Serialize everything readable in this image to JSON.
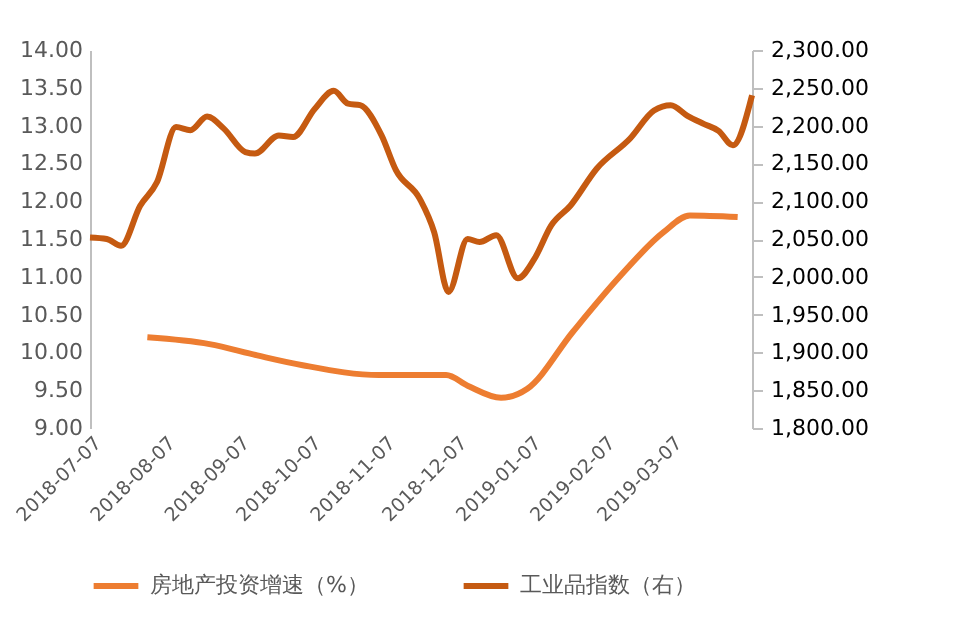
{
  "chart_data": {
    "type": "line",
    "xlim": [
      "2018-07-07",
      "2019-04-10"
    ],
    "xticks": [
      "2018-07-07",
      "2018-08-07",
      "2018-09-07",
      "2018-10-07",
      "2018-11-07",
      "2018-12-07",
      "2019-01-07",
      "2019-02-07",
      "2019-03-07"
    ],
    "ylim": [
      9,
      14
    ],
    "yticks": [
      {
        "value": 9,
        "label": "9.00"
      },
      {
        "value": 9.5,
        "label": "9.50"
      },
      {
        "value": 10,
        "label": "10.00"
      },
      {
        "value": 10.5,
        "label": "10.50"
      },
      {
        "value": 11,
        "label": "11.00"
      },
      {
        "value": 11.5,
        "label": "11.50"
      },
      {
        "value": 12,
        "label": "12.00"
      },
      {
        "value": 12.5,
        "label": "12.50"
      },
      {
        "value": 13,
        "label": "13.00"
      },
      {
        "value": 13.5,
        "label": "13.50"
      },
      {
        "value": 14,
        "label": "14.00"
      }
    ],
    "y2lim": [
      1800,
      2300
    ],
    "y2ticks": [
      {
        "value": 1800,
        "label": "1,800.00"
      },
      {
        "value": 1850,
        "label": "1,850.00"
      },
      {
        "value": 1900,
        "label": "1,900.00"
      },
      {
        "value": 1950,
        "label": "1,950.00"
      },
      {
        "value": 2000,
        "label": "2,000.00"
      },
      {
        "value": 2050,
        "label": "2,050.00"
      },
      {
        "value": 2100,
        "label": "2,100.00"
      },
      {
        "value": 2150,
        "label": "2,150.00"
      },
      {
        "value": 2200,
        "label": "2,200.00"
      },
      {
        "value": 2250,
        "label": "2,250.00"
      },
      {
        "value": 2300,
        "label": "2,300.00"
      }
    ],
    "grid": false,
    "legend": "bottom",
    "marker": "none",
    "line_style": "solid",
    "series": [
      {
        "name": "房地产投资增速（%）",
        "color": "#ed7d31",
        "x": [
          "2018-07-31",
          "2018-08-26",
          "2018-09-15",
          "2018-10-04",
          "2018-11-05",
          "2018-11-12",
          "2018-12-03",
          "2018-12-12",
          "2018-12-26",
          "2019-01-06",
          "2019-01-25",
          "2019-02-13",
          "2019-03-04",
          "2019-03-15",
          "2019-04-04"
        ],
        "values": [
          10.2,
          10.11,
          9.96,
          9.83,
          9.7,
          9.7,
          9.7,
          9.56,
          9.4,
          9.52,
          10.27,
          10.98,
          11.59,
          11.81,
          11.79
        ]
      },
      {
        "name": "工业品指数（右）",
        "color": "#c55a11",
        "axis": "y2",
        "x": [
          "2018-07-07",
          "2018-07-14",
          "2018-07-20",
          "2018-07-28",
          "2018-08-04",
          "2018-08-12",
          "2018-08-18",
          "2018-08-25",
          "2018-09-01",
          "2018-09-10",
          "2018-09-14",
          "2018-09-24",
          "2018-09-30",
          "2018-10-09",
          "2018-10-17",
          "2018-10-23",
          "2018-10-28",
          "2018-11-06",
          "2018-11-12",
          "2018-11-22",
          "2018-11-28",
          "2018-12-04",
          "2018-12-12",
          "2018-12-17",
          "2018-12-24",
          "2019-01-02",
          "2019-01-09",
          "2019-01-16",
          "2019-01-24",
          "2019-02-04",
          "2019-02-18",
          "2019-02-28",
          "2019-03-07",
          "2019-03-14",
          "2019-03-21",
          "2019-03-27",
          "2019-04-02",
          "2019-04-10"
        ],
        "values": [
          2052,
          2050,
          2041,
          2094,
          2125,
          2198,
          2194,
          2212,
          2196,
          2165,
          2163,
          2187,
          2185,
          2222,
          2246,
          2229,
          2227,
          2187,
          2141,
          2103,
          2059,
          1980,
          2050,
          2046,
          2055,
          1998,
          2024,
          2068,
          2094,
          2143,
          2183,
          2220,
          2227,
          2213,
          2202,
          2193,
          2174,
          2240
        ]
      }
    ]
  }
}
